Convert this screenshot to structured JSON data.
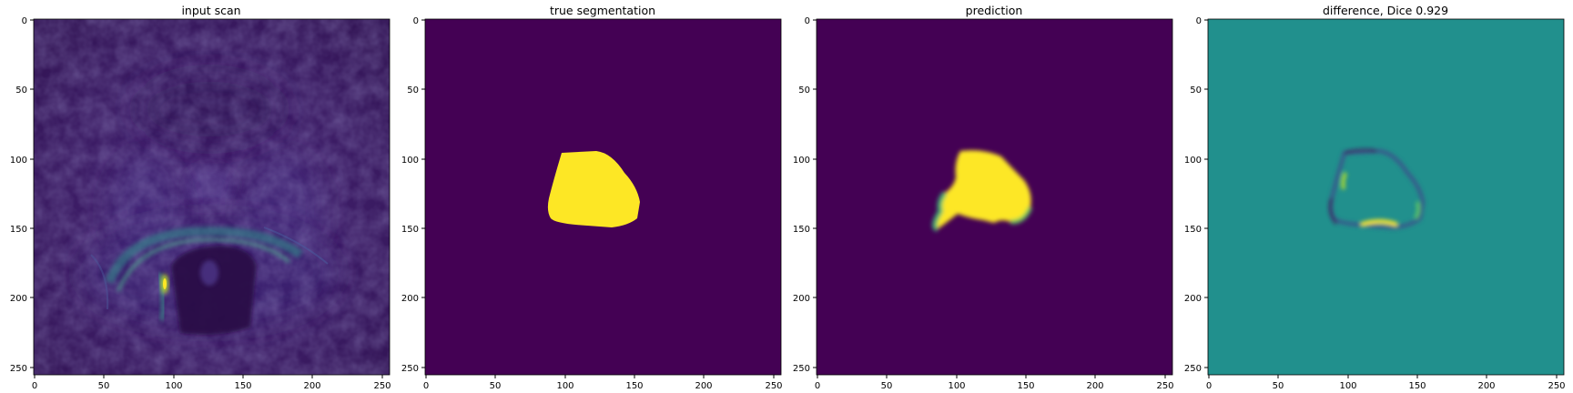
{
  "figure": {
    "panels": [
      {
        "title": "input scan",
        "content": "mri-scan",
        "x_ticks": [
          "0",
          "50",
          "100",
          "150",
          "200",
          "250"
        ],
        "y_ticks": [
          "0",
          "50",
          "100",
          "150",
          "200",
          "250"
        ]
      },
      {
        "title": "true segmentation",
        "content": "binary-mask",
        "x_ticks": [
          "0",
          "50",
          "100",
          "150",
          "200",
          "250"
        ],
        "y_ticks": [
          "0",
          "50",
          "100",
          "150",
          "200",
          "250"
        ]
      },
      {
        "title": "prediction",
        "content": "soft-mask",
        "x_ticks": [
          "0",
          "50",
          "100",
          "150",
          "200",
          "250"
        ],
        "y_ticks": [
          "0",
          "50",
          "100",
          "150",
          "200",
          "250"
        ]
      },
      {
        "title": "difference, Dice 0.929",
        "content": "difference-map",
        "x_ticks": [
          "0",
          "50",
          "100",
          "150",
          "200",
          "250"
        ],
        "y_ticks": [
          "0",
          "50",
          "100",
          "150",
          "200",
          "250"
        ]
      }
    ],
    "colors": {
      "viridis_dark": "#440154",
      "viridis_yellow": "#fde725",
      "viridis_mid": "#21908d",
      "viridis_blue": "#3b528b",
      "viridis_green": "#5ec962",
      "viridis_teal": "#2c728e",
      "scan_background": "#3f1d6a",
      "scan_shadow": "#2a0f47"
    }
  }
}
